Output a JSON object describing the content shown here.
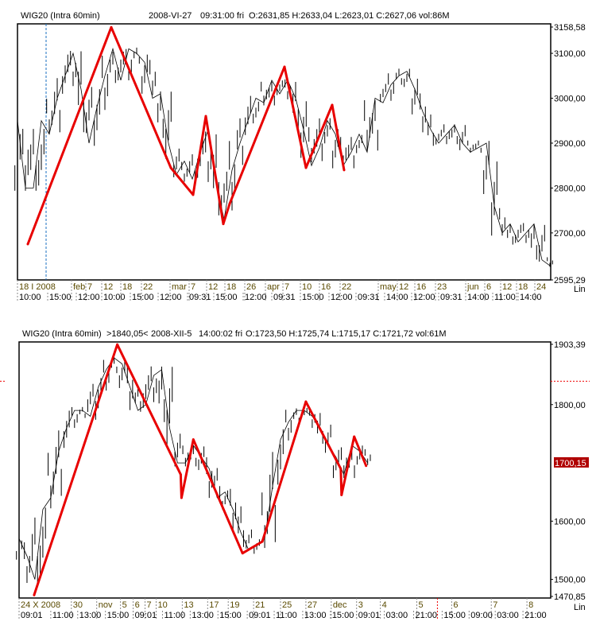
{
  "chart_data": [
    {
      "type": "line",
      "title": "WIG20 (Intra 60min)",
      "header": {
        "date": "2008-VI-27",
        "time": "09:31:00 fri",
        "ohlc": "O:2631,85 H:2633,04 L:2623,01 C:2627,06 vol:86M"
      },
      "scale_mode": "Lin",
      "ylim": [
        2595.29,
        3158.58
      ],
      "xlim": [
        0,
        67
      ],
      "y_ticks": [
        "3158,58",
        "3100,00",
        "3000,00",
        "2900,00",
        "2800,00",
        "2700,00",
        "2595,29"
      ],
      "y_tick_values": [
        3158.58,
        3100,
        3000,
        2900,
        2800,
        2700,
        2595.29
      ],
      "price": [
        2950,
        2800,
        2800,
        2950,
        2920,
        3000,
        3050,
        3100,
        3020,
        2900,
        2980,
        3050,
        3110,
        3040,
        3110,
        3100,
        3080,
        3000,
        3010,
        2900,
        2830,
        2860,
        2820,
        2880,
        2930,
        2810,
        2730,
        2840,
        2900,
        2950,
        3000,
        2990,
        3040,
        3010,
        3040,
        3000,
        2930,
        2850,
        2890,
        2950,
        2920,
        2850,
        2880,
        2920,
        2880,
        3000,
        2990,
        3030,
        3050,
        3060,
        3020,
        2970,
        2930,
        2900,
        2920,
        2940,
        2900,
        2880,
        2890,
        2900,
        2760,
        2700,
        2720,
        2680,
        2700,
        2720,
        2640,
        2627.06
      ],
      "zigzag": [
        [
          1.3,
          2675
        ],
        [
          11.8,
          3158
        ],
        [
          19.3,
          2845
        ],
        [
          22.1,
          2785
        ],
        [
          23.7,
          2960
        ],
        [
          25.9,
          2720
        ],
        [
          26.7,
          2765
        ],
        [
          33.6,
          3070
        ],
        [
          36.3,
          2845
        ],
        [
          39.6,
          2985
        ],
        [
          41.1,
          2840
        ]
      ],
      "cursor_x": 3.6,
      "x_ticks_row1": [
        [
          0,
          "18 I 2008"
        ],
        [
          6.8,
          "feb"
        ],
        [
          8.6,
          "7"
        ],
        [
          10.6,
          "12"
        ],
        [
          13,
          "18"
        ],
        [
          15.6,
          "22"
        ],
        [
          19.2,
          "mar"
        ],
        [
          21.6,
          "7"
        ],
        [
          23.8,
          "12"
        ],
        [
          26.1,
          "18"
        ],
        [
          28.6,
          "26"
        ],
        [
          31.2,
          "apr"
        ],
        [
          33.4,
          "7"
        ],
        [
          35.6,
          "10"
        ],
        [
          38,
          "16"
        ],
        [
          40.6,
          "22"
        ],
        [
          45.4,
          "may"
        ],
        [
          47.8,
          "12"
        ],
        [
          50,
          "16"
        ],
        [
          52.6,
          "23"
        ],
        [
          56.4,
          "jun"
        ],
        [
          58.8,
          "6"
        ],
        [
          60.8,
          "12"
        ],
        [
          62.8,
          "18"
        ],
        [
          65.1,
          "24"
        ]
      ],
      "x_ticks_row2": [
        [
          0,
          "10:00"
        ],
        [
          3.8,
          "15:00"
        ],
        [
          7.4,
          "12:00"
        ],
        [
          10.6,
          "10:00"
        ],
        [
          14.2,
          "15:00"
        ],
        [
          17.7,
          "12:00"
        ],
        [
          21.4,
          "09:31"
        ],
        [
          24.7,
          "15:00"
        ],
        [
          28.4,
          "12:00"
        ],
        [
          32,
          "09:31"
        ],
        [
          35.6,
          "15:00"
        ],
        [
          39.2,
          "12:00"
        ],
        [
          42.6,
          "09:31"
        ],
        [
          46.2,
          "14:00"
        ],
        [
          49.6,
          "12:00"
        ],
        [
          53,
          "09:31"
        ],
        [
          56.4,
          "14:00"
        ],
        [
          59.8,
          "11:00"
        ],
        [
          63,
          "14:00"
        ]
      ]
    },
    {
      "type": "line",
      "title": "WIG20 (Intra 60min)",
      "header": {
        "level": ">1840,05<",
        "date": "2008-XII-5",
        "time": "14:00:02 fri",
        "ohlc": "O:1723,50 H:1725,74 L:1715,17 C:1721,72 vol:61M"
      },
      "scale_mode": "Lin",
      "ylim": [
        1470.85,
        1903.39
      ],
      "xlim": [
        0,
        67
      ],
      "y_ticks": [
        "1903,39",
        "1800,00",
        "1600,00",
        "1500,00",
        "1470,85"
      ],
      "y_tick_values": [
        1903.39,
        1800,
        1600,
        1500,
        1470.85
      ],
      "last_price": "1700,15",
      "last_price_value": 1700.15,
      "level_line": 1840.05,
      "price": [
        1570,
        1540,
        1500,
        1620,
        1640,
        1720,
        1760,
        1790,
        1790,
        1780,
        1830,
        1860,
        1880,
        1870,
        1830,
        1790,
        1800,
        1850,
        1860,
        1760,
        1700,
        1700,
        1730,
        1710,
        1690,
        1640,
        1650,
        1620,
        1580,
        1550,
        1560,
        1570,
        1660,
        1740,
        1770,
        1790,
        1790,
        1780,
        1760,
        1730,
        1710,
        1680,
        1730,
        1720,
        1700
      ],
      "zigzag": [
        [
          1.9,
          1473
        ],
        [
          12.4,
          1903
        ],
        [
          20.4,
          1680
        ],
        [
          20.5,
          1640
        ],
        [
          22,
          1740
        ],
        [
          28.2,
          1545
        ],
        [
          30.7,
          1565
        ],
        [
          36.2,
          1805
        ],
        [
          40.6,
          1690
        ],
        [
          40.7,
          1645
        ],
        [
          42.3,
          1745
        ],
        [
          43.8,
          1695
        ]
      ],
      "cursor_x": 52.8,
      "x_ticks_row1": [
        [
          0,
          "24 X 2008"
        ],
        [
          6.6,
          "30"
        ],
        [
          9.8,
          "nov"
        ],
        [
          12.8,
          "5"
        ],
        [
          14.4,
          "6"
        ],
        [
          15.9,
          "7"
        ],
        [
          17.3,
          "10"
        ],
        [
          20.6,
          "13"
        ],
        [
          23.8,
          "17"
        ],
        [
          26.4,
          "19"
        ],
        [
          29.6,
          "21"
        ],
        [
          33,
          "25"
        ],
        [
          36.2,
          "27"
        ],
        [
          39.4,
          "dec"
        ],
        [
          42.6,
          "3"
        ],
        [
          45.6,
          "4"
        ],
        [
          50.2,
          "5"
        ],
        [
          54.6,
          "6"
        ],
        [
          59.6,
          "7"
        ],
        [
          64.1,
          "8"
        ]
      ],
      "x_ticks_row2": [
        [
          0,
          "09:01"
        ],
        [
          4,
          "11:00"
        ],
        [
          7.4,
          "13:00"
        ],
        [
          10.9,
          "15:00"
        ],
        [
          14.4,
          "09:01"
        ],
        [
          18.1,
          "11:00"
        ],
        [
          21.6,
          "13:00"
        ],
        [
          25.1,
          "15:00"
        ],
        [
          28.8,
          "09:01"
        ],
        [
          32.2,
          "11:00"
        ],
        [
          35.8,
          "13:00"
        ],
        [
          39.3,
          "15:00"
        ],
        [
          42.6,
          "09:01"
        ],
        [
          46.1,
          "03:00"
        ],
        [
          49.8,
          "21:00"
        ],
        [
          53.4,
          "15:00"
        ],
        [
          56.8,
          "09:00"
        ],
        [
          60.1,
          "03:00"
        ],
        [
          63.6,
          "21:00"
        ]
      ]
    }
  ]
}
